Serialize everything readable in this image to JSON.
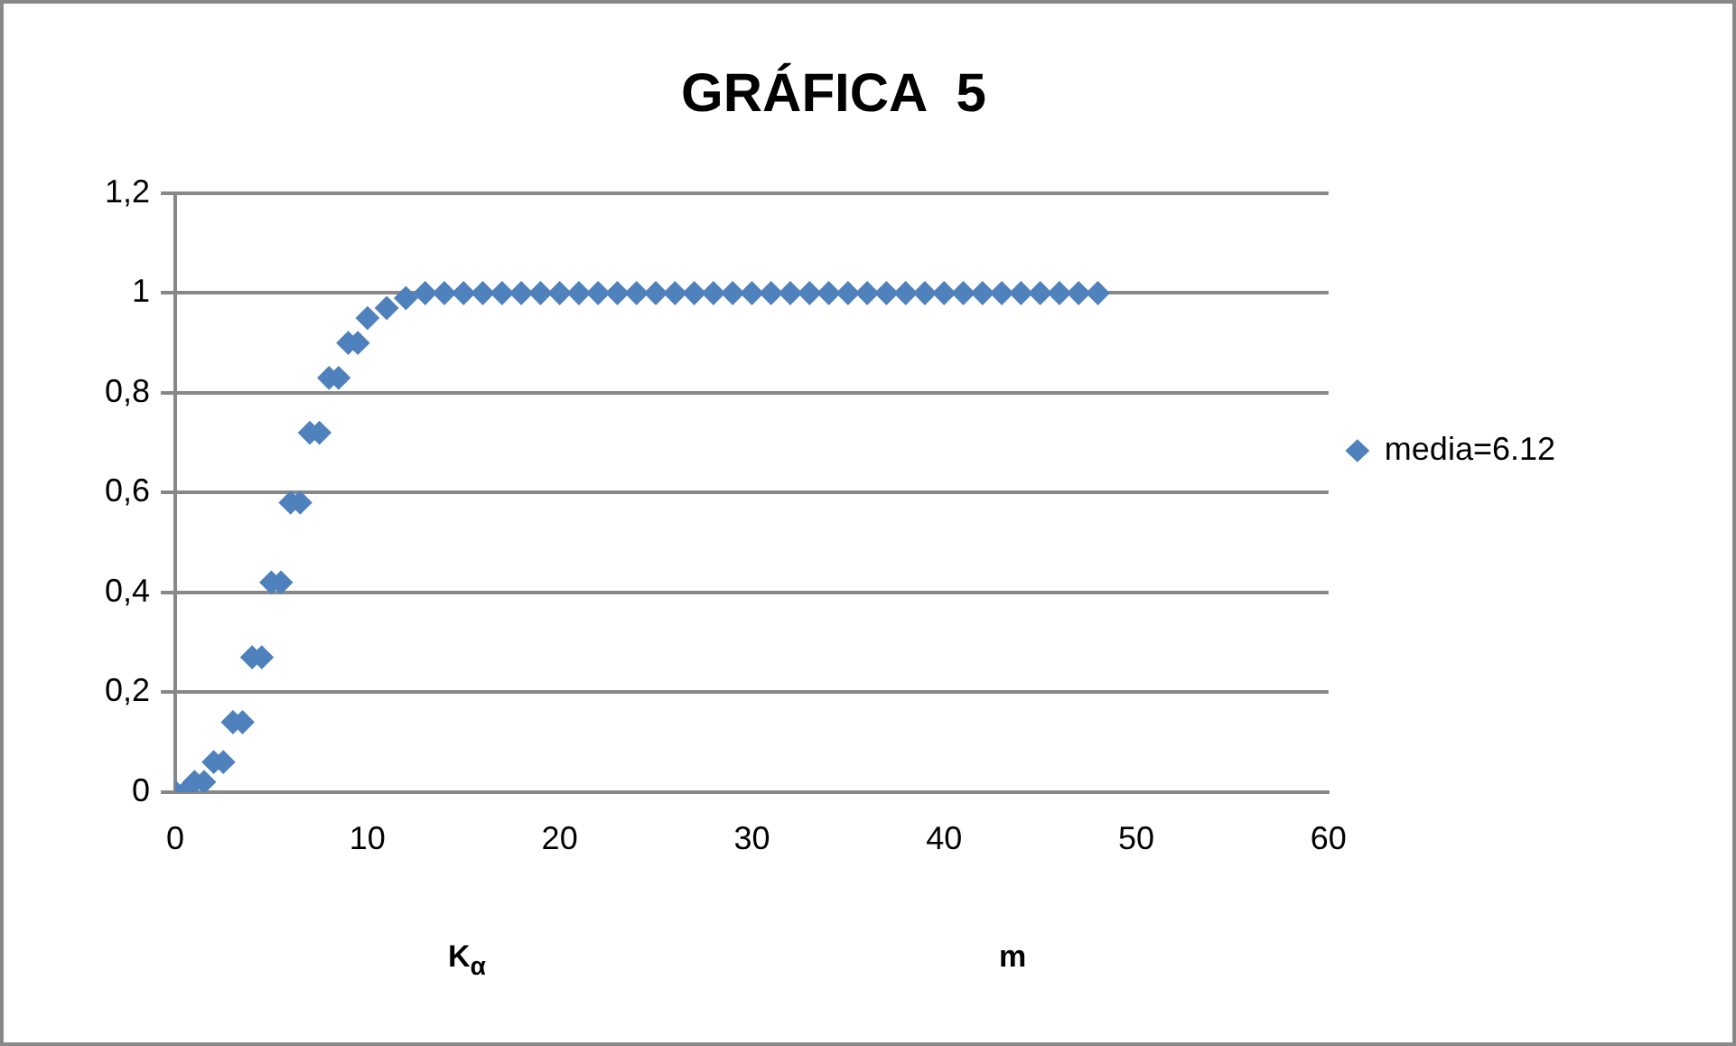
{
  "chart_data": {
    "type": "scatter",
    "title": "GRÁFICA  5",
    "xlabel": "K$_{α}$",
    "annotations": [
      "m"
    ],
    "x": [
      0,
      0.5,
      1,
      1.5,
      2,
      2.5,
      3,
      3.5,
      4,
      4.5,
      5,
      5.5,
      6,
      6.5,
      7,
      7.5,
      8,
      8.5,
      9,
      9.5,
      10,
      11,
      12,
      13,
      14,
      15,
      16,
      17,
      18,
      19,
      20,
      21,
      22,
      23,
      24,
      25,
      26,
      27,
      28,
      29,
      30,
      31,
      32,
      33,
      34,
      35,
      36,
      37,
      38,
      39,
      40,
      41,
      42,
      43,
      44,
      45,
      46,
      47,
      48
    ],
    "series": [
      {
        "name": "media=6.12",
        "color": "#4f81bd",
        "values": [
          0,
          0,
          0.02,
          0.02,
          0.06,
          0.06,
          0.14,
          0.14,
          0.27,
          0.27,
          0.42,
          0.42,
          0.58,
          0.58,
          0.72,
          0.72,
          0.83,
          0.83,
          0.9,
          0.9,
          0.95,
          0.97,
          0.99,
          1,
          1,
          1,
          1,
          1,
          1,
          1,
          1,
          1,
          1,
          1,
          1,
          1,
          1,
          1,
          1,
          1,
          1,
          1,
          1,
          1,
          1,
          1,
          1,
          1,
          1,
          1,
          1,
          1,
          1,
          1,
          1,
          1,
          1,
          1,
          1
        ]
      }
    ],
    "xlim": [
      0,
      60
    ],
    "xticks": [
      0,
      10,
      20,
      30,
      40,
      50,
      60
    ],
    "ylim": [
      0,
      1.2
    ],
    "yticks": [
      0,
      {
        "value": 0.2,
        "label": "0,2"
      },
      {
        "value": 0.4,
        "label": "0,4"
      },
      {
        "value": 0.6,
        "label": "0,6"
      },
      {
        "value": 0.8,
        "label": "0,8"
      },
      1,
      {
        "value": 1.2,
        "label": "1,2"
      }
    ],
    "grid": "y",
    "legend": "right",
    "marker": "diamond"
  }
}
